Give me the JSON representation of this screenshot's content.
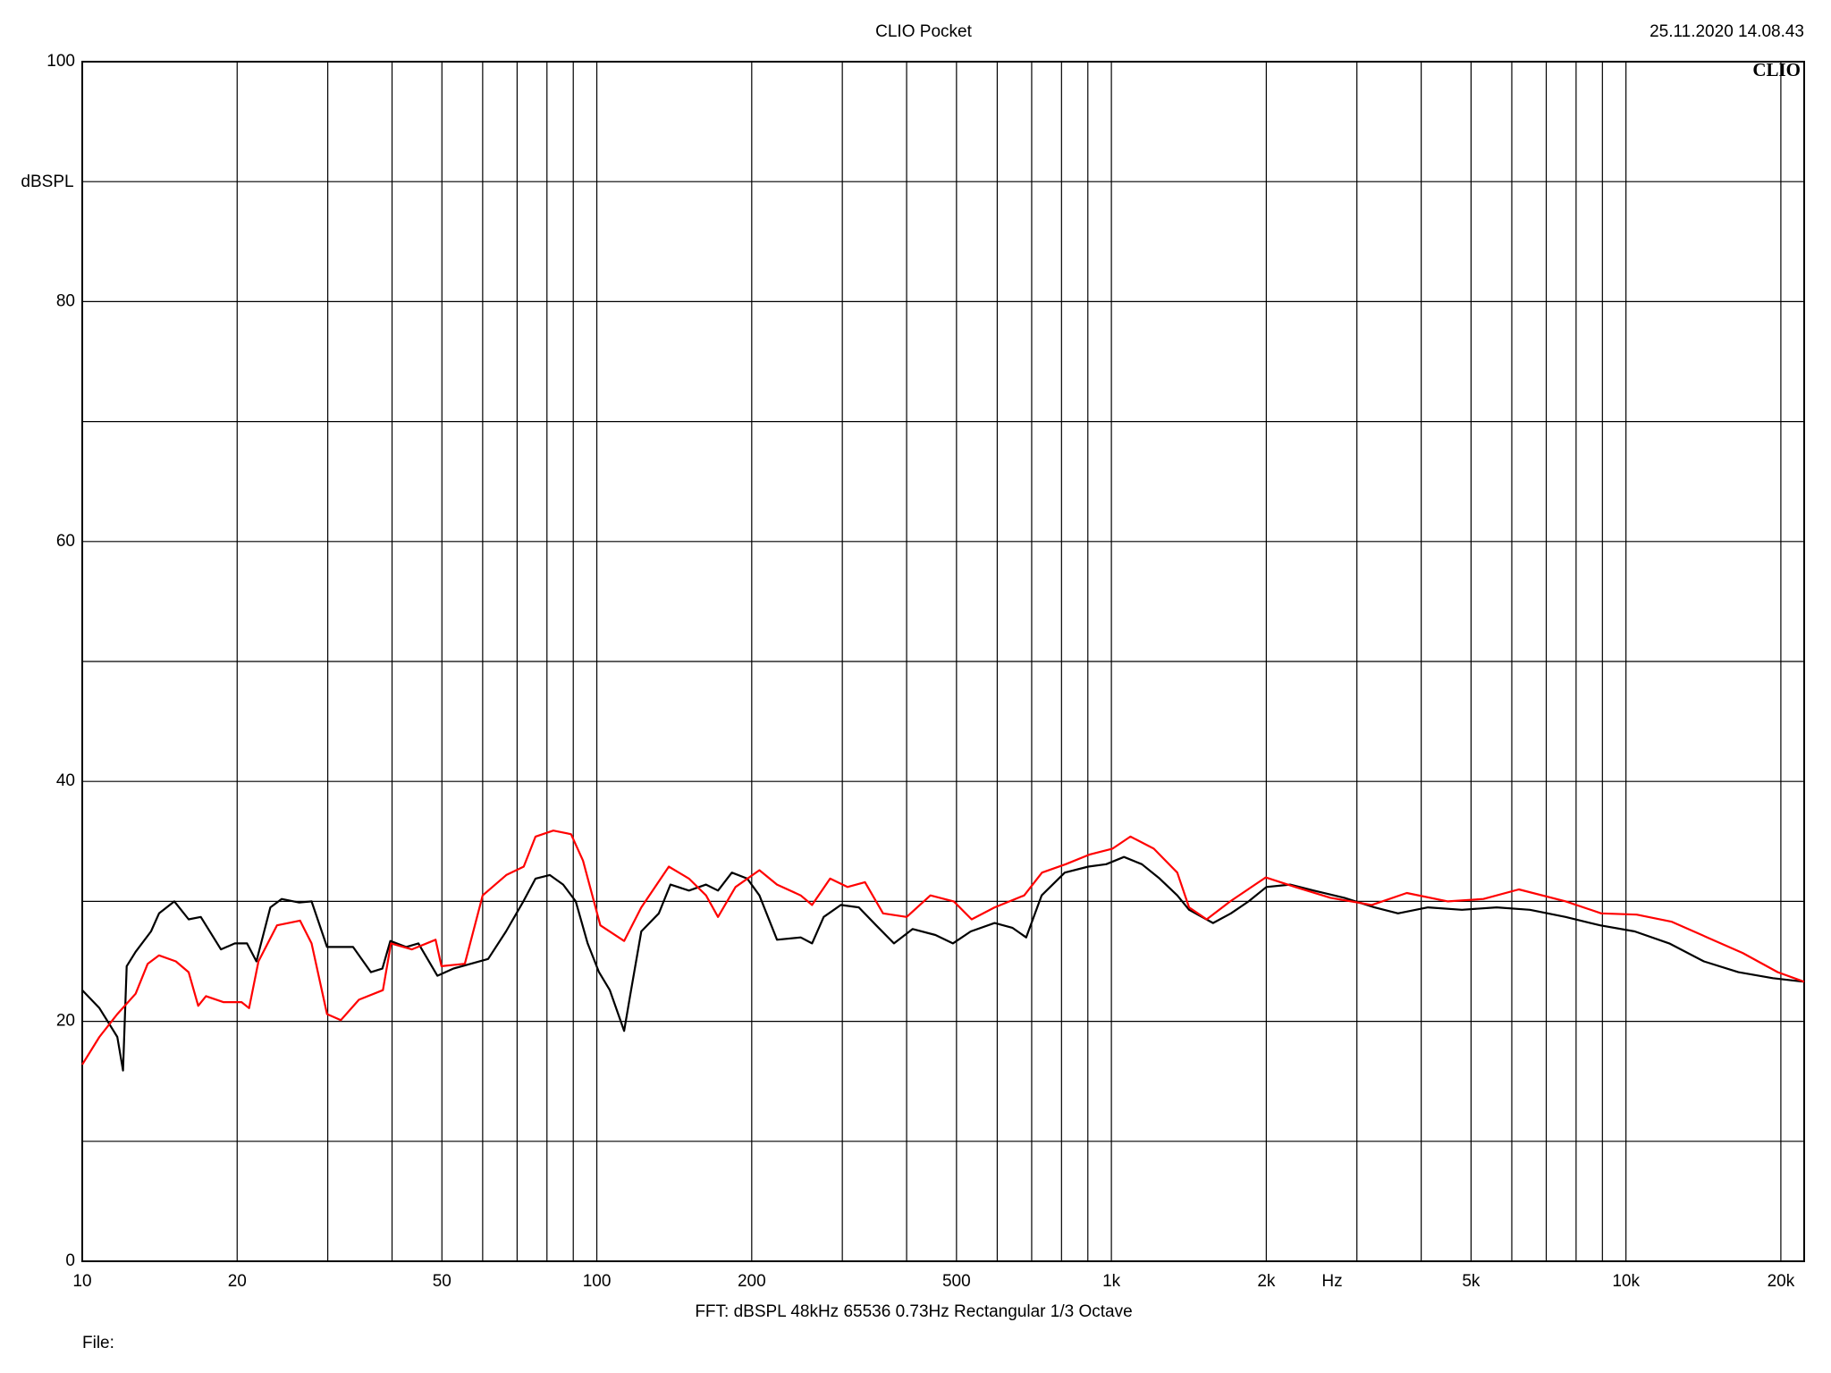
{
  "chart_data": {
    "type": "line",
    "title": "CLIO Pocket",
    "timestamp": "25.11.2020 14.08.43",
    "logo": "CLIO",
    "y_label": "dBSPL",
    "x_label": "Hz",
    "footer": "FFT:  dBSPL  48kHz  65536  0.73Hz  Rectangular  1/3 Octave",
    "file_label": "File:",
    "log_x": true,
    "grid": true,
    "xlim": [
      10,
      22200
    ],
    "ylim": [
      0,
      100
    ],
    "xticks": [
      10,
      20,
      50,
      100,
      200,
      500,
      {
        "value": 1000,
        "label": "1k"
      },
      {
        "value": 2000,
        "label": "2k"
      },
      {
        "value": 5000,
        "label": "5k"
      },
      {
        "value": 10000,
        "label": "10k"
      },
      {
        "value": 20000,
        "label": "20k"
      }
    ],
    "x_minor_grid": [
      30,
      40,
      60,
      70,
      80,
      90,
      300,
      400,
      600,
      700,
      800,
      900,
      3000,
      4000,
      6000,
      7000,
      8000,
      9000
    ],
    "yticks": [
      0,
      20,
      40,
      60,
      80,
      100
    ],
    "y_minor_grid": [
      10,
      30,
      50,
      70,
      90
    ],
    "series": [
      {
        "color": "#000000",
        "x": [
          10,
          10.8,
          11.7,
          12.0,
          12.2,
          12.7,
          13.6,
          14.1,
          15.1,
          16.1,
          17.0,
          18.6,
          19.8,
          20.9,
          21.8,
          23.2,
          24.4,
          26.4,
          27.9,
          29.9,
          33.6,
          36.4,
          38.3,
          39.7,
          42.6,
          45.0,
          49.0,
          52.6,
          56.9,
          61.5,
          66.6,
          72.0,
          76.0,
          81.0,
          86.0,
          91.0,
          96.0,
          101,
          106,
          113,
          116,
          122,
          132,
          139,
          151,
          163,
          172,
          183,
          196,
          207,
          224,
          249,
          262,
          276,
          298,
          323,
          349,
          378,
          411,
          455,
          492,
          533,
          593,
          642,
          683,
          732,
          812,
          902,
          977,
          1058,
          1146,
          1241,
          1343,
          1416,
          1576,
          1707,
          1848,
          2001,
          2225,
          2475,
          2837,
          3244,
          3606,
          4123,
          4801,
          5606,
          6506,
          7632,
          8910,
          10400,
          12140,
          14170,
          16540,
          19300,
          22200
        ],
        "values": [
          22.6,
          21.1,
          18.7,
          15.9,
          24.6,
          25.8,
          27.5,
          29.0,
          30.0,
          28.5,
          28.7,
          26.0,
          26.5,
          26.5,
          25.0,
          29.5,
          30.2,
          29.9,
          30.0,
          26.2,
          26.2,
          24.1,
          24.4,
          26.7,
          26.2,
          26.5,
          23.8,
          24.4,
          24.8,
          25.2,
          27.5,
          30.0,
          31.9,
          32.2,
          31.4,
          30.0,
          26.5,
          24.1,
          22.6,
          19.2,
          22.1,
          27.5,
          29.0,
          31.4,
          30.9,
          31.4,
          30.9,
          32.4,
          31.9,
          30.5,
          26.8,
          27.0,
          26.5,
          28.7,
          29.7,
          29.5,
          28.0,
          26.5,
          27.7,
          27.2,
          26.5,
          27.5,
          28.2,
          27.8,
          27.0,
          30.5,
          32.4,
          32.9,
          33.1,
          33.7,
          33.1,
          31.9,
          30.5,
          29.3,
          28.2,
          29.0,
          30.0,
          31.2,
          31.4,
          30.9,
          30.3,
          29.5,
          29.0,
          29.5,
          29.3,
          29.5,
          29.3,
          28.7,
          28.0,
          27.5,
          26.5,
          25.0,
          24.1,
          23.6,
          23.3
        ]
      },
      {
        "color": "#ff0000",
        "x": [
          10,
          10.8,
          11.7,
          12.7,
          13.4,
          14.1,
          15.2,
          16.1,
          16.8,
          17.4,
          18.8,
          20.4,
          21.1,
          22.0,
          23.9,
          26.5,
          27.9,
          29.9,
          31.8,
          34.5,
          38.4,
          39.8,
          43.7,
          48.6,
          49.9,
          55.4,
          60.0,
          66.7,
          72.1,
          76.0,
          82.3,
          89.1,
          94.0,
          101.6,
          113,
          122,
          138,
          151,
          163,
          172,
          186,
          207,
          224,
          249,
          262,
          284,
          307,
          332,
          360,
          400,
          445,
          494,
          535,
          593,
          677,
          733,
          815,
          906,
          1005,
          1089,
          1209,
          1343,
          1416,
          1532,
          1702,
          1995,
          2276,
          2667,
          3206,
          3750,
          4508,
          5284,
          6194,
          7640,
          8951,
          10490,
          12280,
          14390,
          16860,
          19730,
          22200
        ],
        "values": [
          16.4,
          18.7,
          20.6,
          22.3,
          24.8,
          25.5,
          25.0,
          24.1,
          21.3,
          22.1,
          21.6,
          21.6,
          21.1,
          25.0,
          28.0,
          28.4,
          26.5,
          20.6,
          20.1,
          21.8,
          22.6,
          26.5,
          26.0,
          26.8,
          24.6,
          24.8,
          30.5,
          32.2,
          32.9,
          35.4,
          35.9,
          35.6,
          33.4,
          28.0,
          26.7,
          29.5,
          32.9,
          31.9,
          30.5,
          28.7,
          31.2,
          32.6,
          31.4,
          30.5,
          29.7,
          31.9,
          31.2,
          31.6,
          29.0,
          28.7,
          30.5,
          30.0,
          28.5,
          29.5,
          30.5,
          32.4,
          33.1,
          33.9,
          34.4,
          35.4,
          34.4,
          32.4,
          29.5,
          28.5,
          30.0,
          32.0,
          31.2,
          30.3,
          29.7,
          30.7,
          30.0,
          30.2,
          31.0,
          30.0,
          29.0,
          28.9,
          28.3,
          27.0,
          25.7,
          24.1,
          23.3
        ]
      }
    ]
  }
}
